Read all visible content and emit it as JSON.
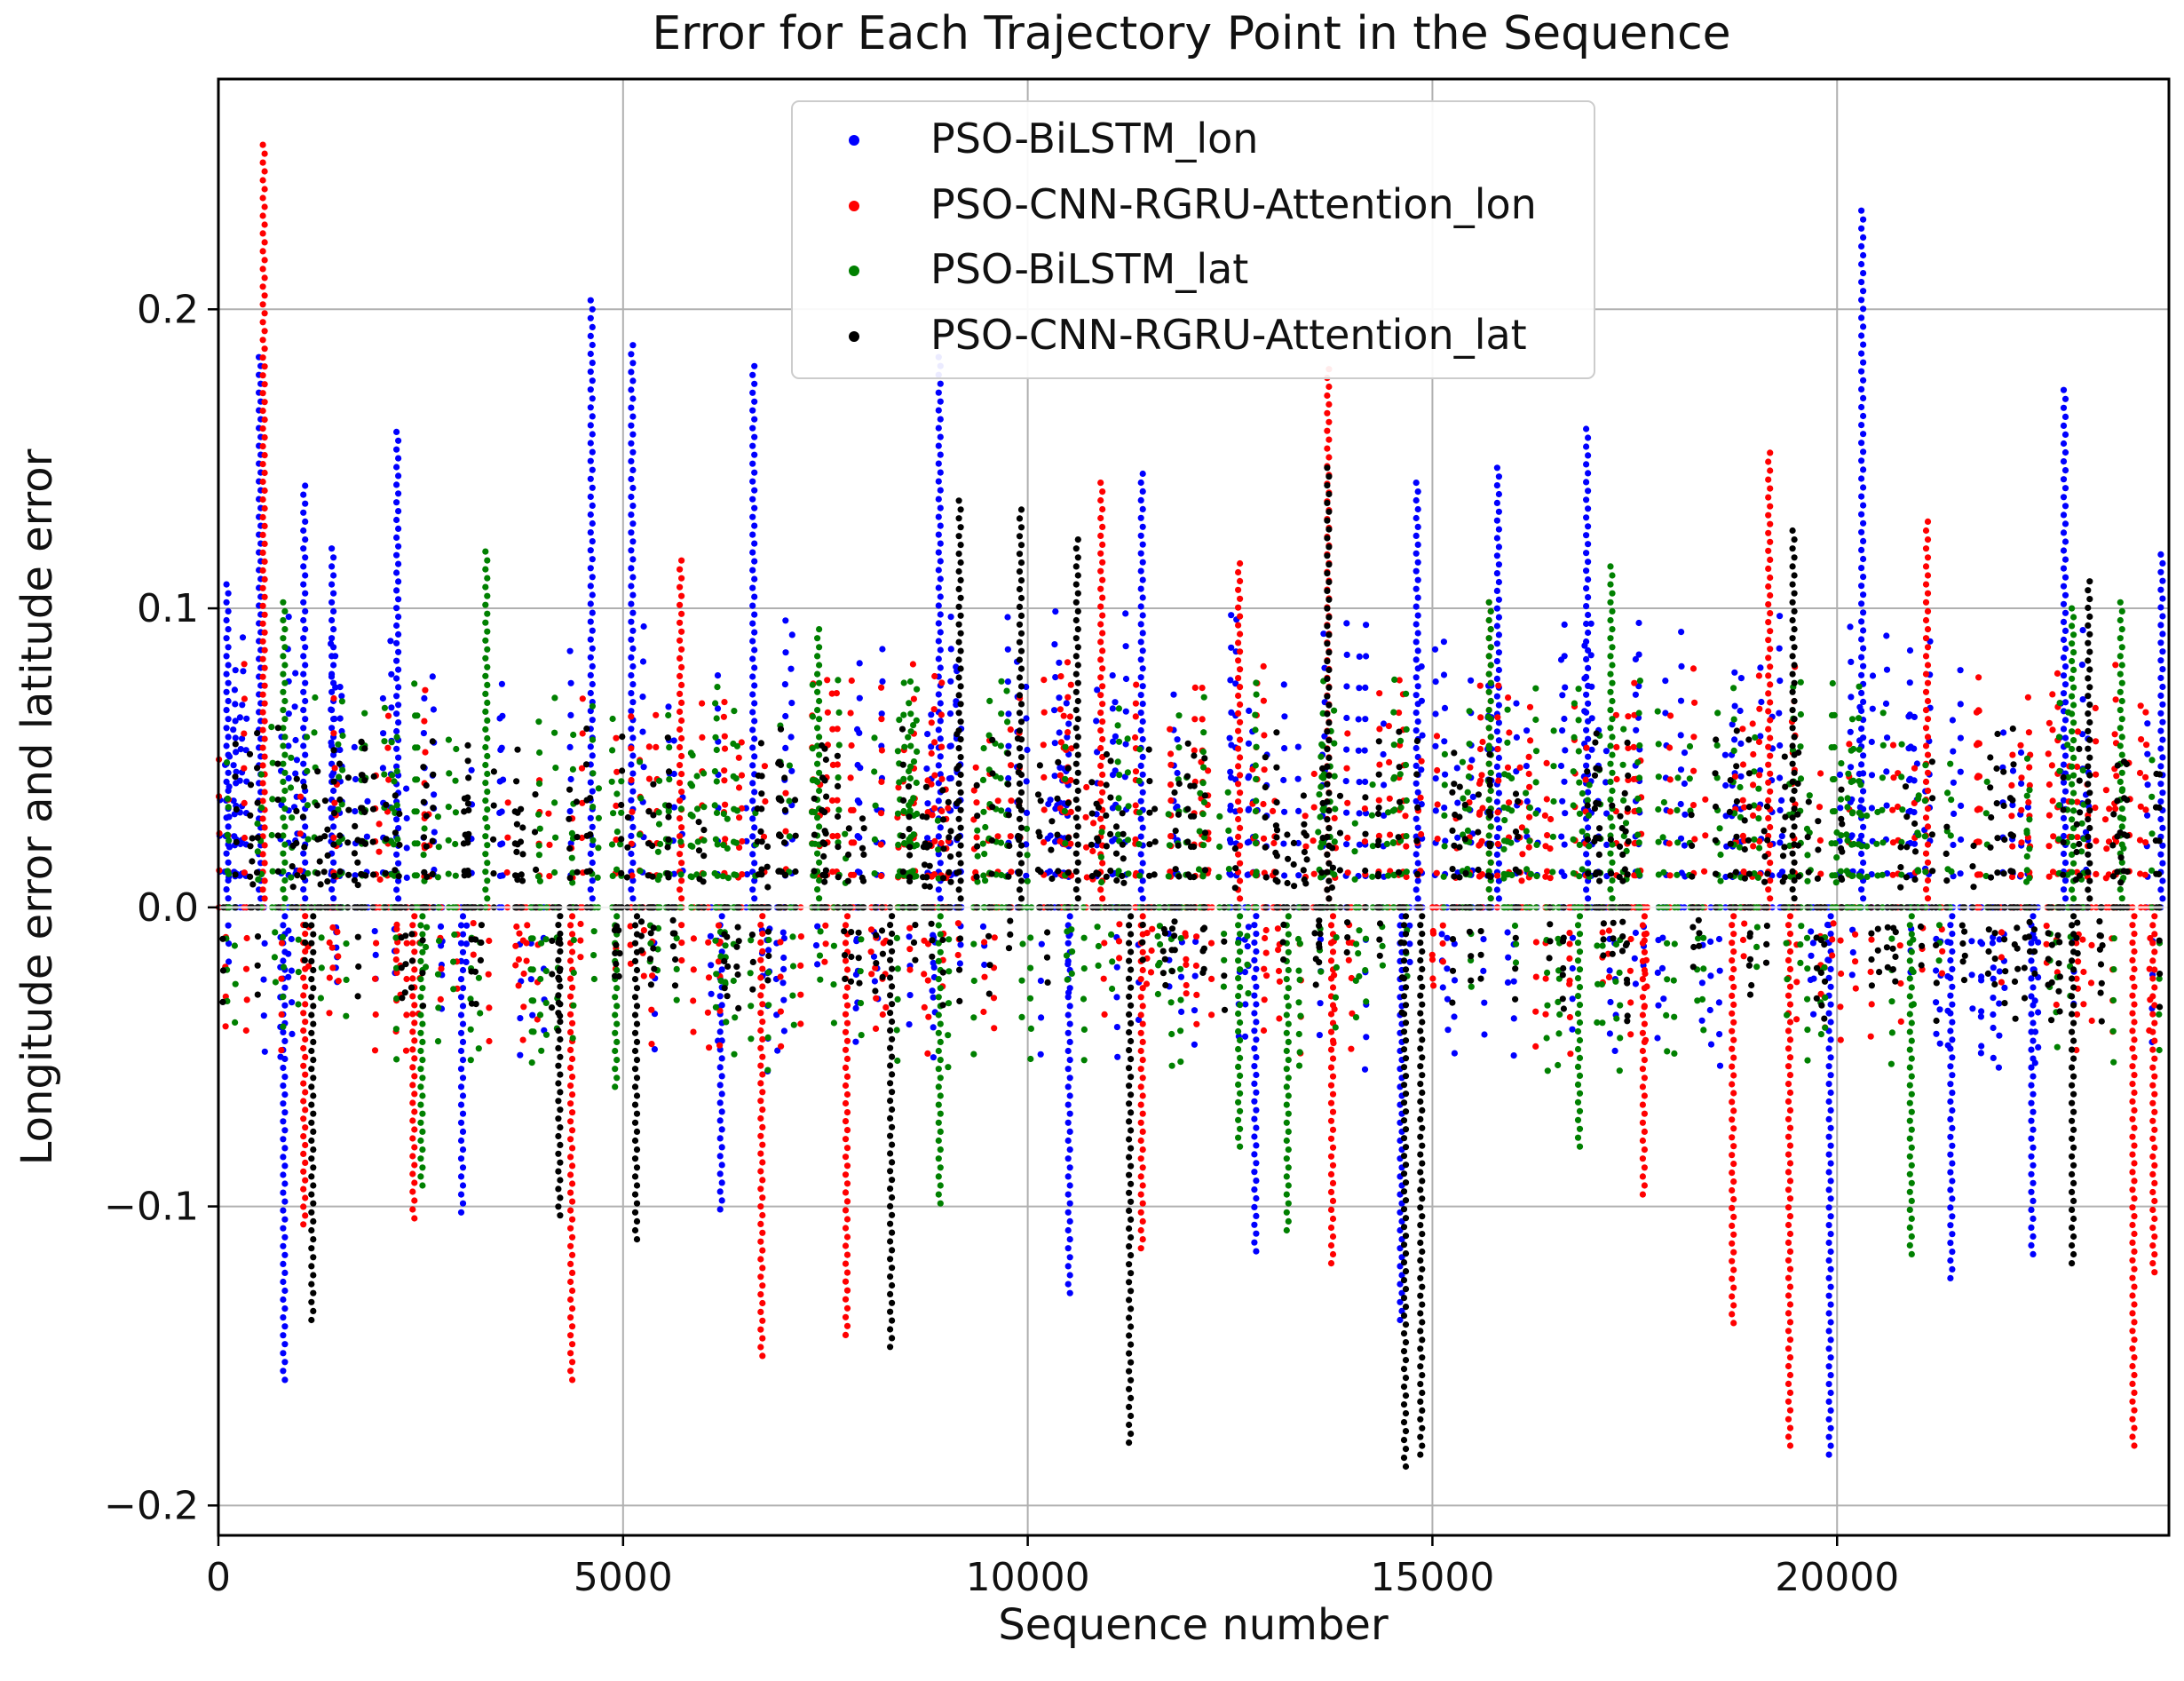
{
  "chart_data": {
    "type": "scatter",
    "title": "Error for Each Trajectory Point in the Sequence",
    "xlabel": "Sequence number",
    "ylabel": "Longitude error and latitude error",
    "xlim": [
      0,
      24100
    ],
    "ylim": [
      -0.21,
      0.277
    ],
    "xticks": [
      0,
      5000,
      10000,
      15000,
      20000
    ],
    "xtick_labels": [
      "0",
      "5000",
      "10000",
      "15000",
      "20000"
    ],
    "yticks": [
      -0.2,
      -0.1,
      0.0,
      0.1,
      0.2
    ],
    "ytick_labels": [
      "−0.2",
      "−0.1",
      "0.0",
      "0.1",
      "0.2"
    ],
    "grid": true,
    "legend_position": "top-center",
    "series": [
      {
        "name": "PSO-BiLSTM_lon",
        "color": "#0000ff",
        "spikes": [
          [
            100,
            0.108
          ],
          [
            500,
            0.184
          ],
          [
            800,
            -0.158
          ],
          [
            1050,
            0.141
          ],
          [
            1400,
            0.12
          ],
          [
            2200,
            0.159
          ],
          [
            3000,
            -0.102
          ],
          [
            4600,
            0.203
          ],
          [
            5100,
            0.188
          ],
          [
            6600,
            0.181
          ],
          [
            6200,
            -0.101
          ],
          [
            8900,
            0.184
          ],
          [
            10500,
            -0.129
          ],
          [
            11400,
            0.145
          ],
          [
            12800,
            -0.115
          ],
          [
            14600,
            -0.138
          ],
          [
            14800,
            0.142
          ],
          [
            15800,
            0.147
          ],
          [
            16900,
            0.16
          ],
          [
            19900,
            -0.183
          ],
          [
            20300,
            0.233
          ],
          [
            21400,
            -0.124
          ],
          [
            22400,
            -0.116
          ],
          [
            22800,
            0.173
          ],
          [
            24000,
            0.118
          ]
        ],
        "band": [
          -0.05,
          0.09
        ]
      },
      {
        "name": "PSO-CNN-RGRU-Attention_lon",
        "color": "#ff0000",
        "spikes": [
          [
            550,
            0.255
          ],
          [
            1050,
            -0.106
          ],
          [
            2400,
            -0.104
          ],
          [
            4350,
            -0.158
          ],
          [
            5700,
            0.116
          ],
          [
            6700,
            -0.15
          ],
          [
            7750,
            -0.143
          ],
          [
            10900,
            0.142
          ],
          [
            11400,
            -0.114
          ],
          [
            12600,
            0.115
          ],
          [
            13700,
            0.18
          ],
          [
            13750,
            -0.119
          ],
          [
            15700,
            0.102
          ],
          [
            17600,
            -0.096
          ],
          [
            18700,
            -0.139
          ],
          [
            19150,
            0.152
          ],
          [
            19400,
            -0.18
          ],
          [
            21100,
            0.129
          ],
          [
            23650,
            -0.18
          ],
          [
            23900,
            -0.122
          ]
        ],
        "band": [
          -0.045,
          0.075
        ]
      },
      {
        "name": "PSO-BiLSTM_lat",
        "color": "#008000",
        "spikes": [
          [
            800,
            0.102
          ],
          [
            2500,
            -0.093
          ],
          [
            3300,
            0.119
          ],
          [
            4900,
            -0.06
          ],
          [
            7400,
            0.093
          ],
          [
            8900,
            -0.099
          ],
          [
            12600,
            -0.08
          ],
          [
            13200,
            -0.108
          ],
          [
            15700,
            0.102
          ],
          [
            16800,
            -0.08
          ],
          [
            17200,
            0.114
          ],
          [
            20900,
            -0.116
          ],
          [
            22900,
            0.1
          ],
          [
            23500,
            0.102
          ]
        ],
        "band": [
          -0.05,
          0.07
        ]
      },
      {
        "name": "PSO-CNN-RGRU-Attention_lat",
        "color": "#000000",
        "spikes": [
          [
            1150,
            -0.138
          ],
          [
            4200,
            -0.103
          ],
          [
            5150,
            -0.111
          ],
          [
            8300,
            -0.147
          ],
          [
            9150,
            0.136
          ],
          [
            9900,
            0.133
          ],
          [
            10600,
            0.123
          ],
          [
            11250,
            -0.179
          ],
          [
            13700,
            0.147
          ],
          [
            14650,
            -0.187
          ],
          [
            14850,
            -0.183
          ],
          [
            19450,
            0.126
          ],
          [
            22900,
            -0.119
          ],
          [
            23100,
            0.109
          ]
        ],
        "band": [
          -0.035,
          0.055
        ]
      }
    ]
  }
}
